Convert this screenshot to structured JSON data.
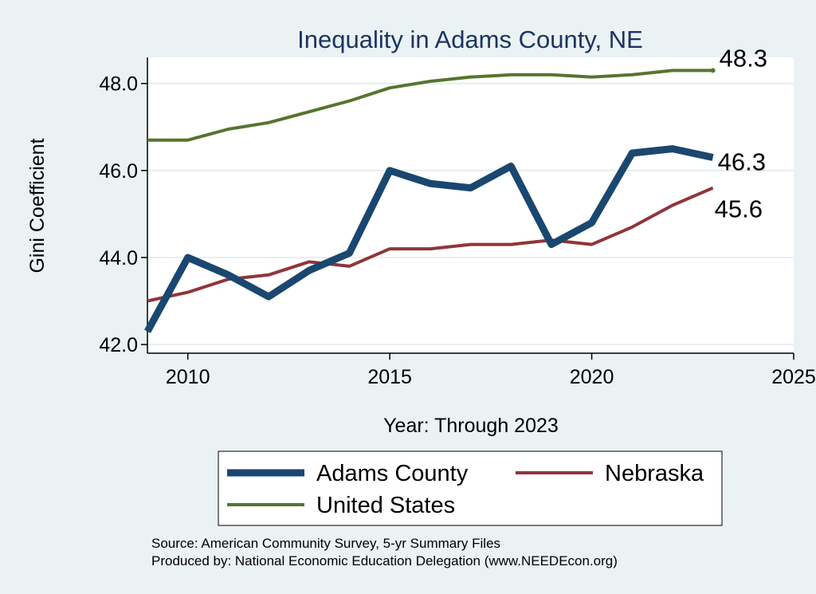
{
  "chart_data": {
    "type": "line",
    "title": "Inequality in Adams County, NE",
    "xlabel": "Year: Through 2023",
    "ylabel": "Gini Coefficient",
    "xlim": [
      2009,
      2025
    ],
    "ylim": [
      41.8,
      48.6
    ],
    "x_ticks": [
      2010,
      2015,
      2020,
      2025
    ],
    "y_ticks": [
      42.0,
      44.0,
      46.0,
      48.0
    ],
    "y_tick_labels": [
      "42.0",
      "44.0",
      "46.0",
      "48.0"
    ],
    "grid": true,
    "legend_position": "bottom",
    "series": [
      {
        "name": "Adams County",
        "color": "#1a476f",
        "x": [
          2009,
          2010,
          2011,
          2012,
          2013,
          2014,
          2015,
          2016,
          2017,
          2018,
          2019,
          2020,
          2021,
          2022,
          2023
        ],
        "values": [
          42.3,
          44.0,
          43.6,
          43.1,
          43.7,
          44.1,
          46.0,
          45.7,
          45.6,
          46.1,
          44.3,
          44.8,
          46.4,
          46.5,
          46.3
        ],
        "end_label": "46.3"
      },
      {
        "name": "Nebraska",
        "color": "#90353b",
        "x": [
          2009,
          2010,
          2011,
          2012,
          2013,
          2014,
          2015,
          2016,
          2017,
          2018,
          2019,
          2020,
          2021,
          2022,
          2023
        ],
        "values": [
          43.0,
          43.2,
          43.5,
          43.6,
          43.9,
          43.8,
          44.2,
          44.2,
          44.3,
          44.3,
          44.4,
          44.3,
          44.7,
          45.2,
          45.6
        ],
        "end_label": "45.6"
      },
      {
        "name": "United States",
        "color": "#55752f",
        "x": [
          2009,
          2010,
          2011,
          2012,
          2013,
          2014,
          2015,
          2016,
          2017,
          2018,
          2019,
          2020,
          2021,
          2022,
          2023
        ],
        "values": [
          46.7,
          46.7,
          46.95,
          47.1,
          47.35,
          47.6,
          47.9,
          48.05,
          48.15,
          48.2,
          48.2,
          48.15,
          48.2,
          48.3,
          48.3
        ],
        "end_label": "48.3"
      }
    ],
    "footer": [
      "Source: American Community Survey, 5-yr Summary Files",
      "Produced by: National Economic Education Delegation (www.NEEDEcon.org)"
    ]
  }
}
